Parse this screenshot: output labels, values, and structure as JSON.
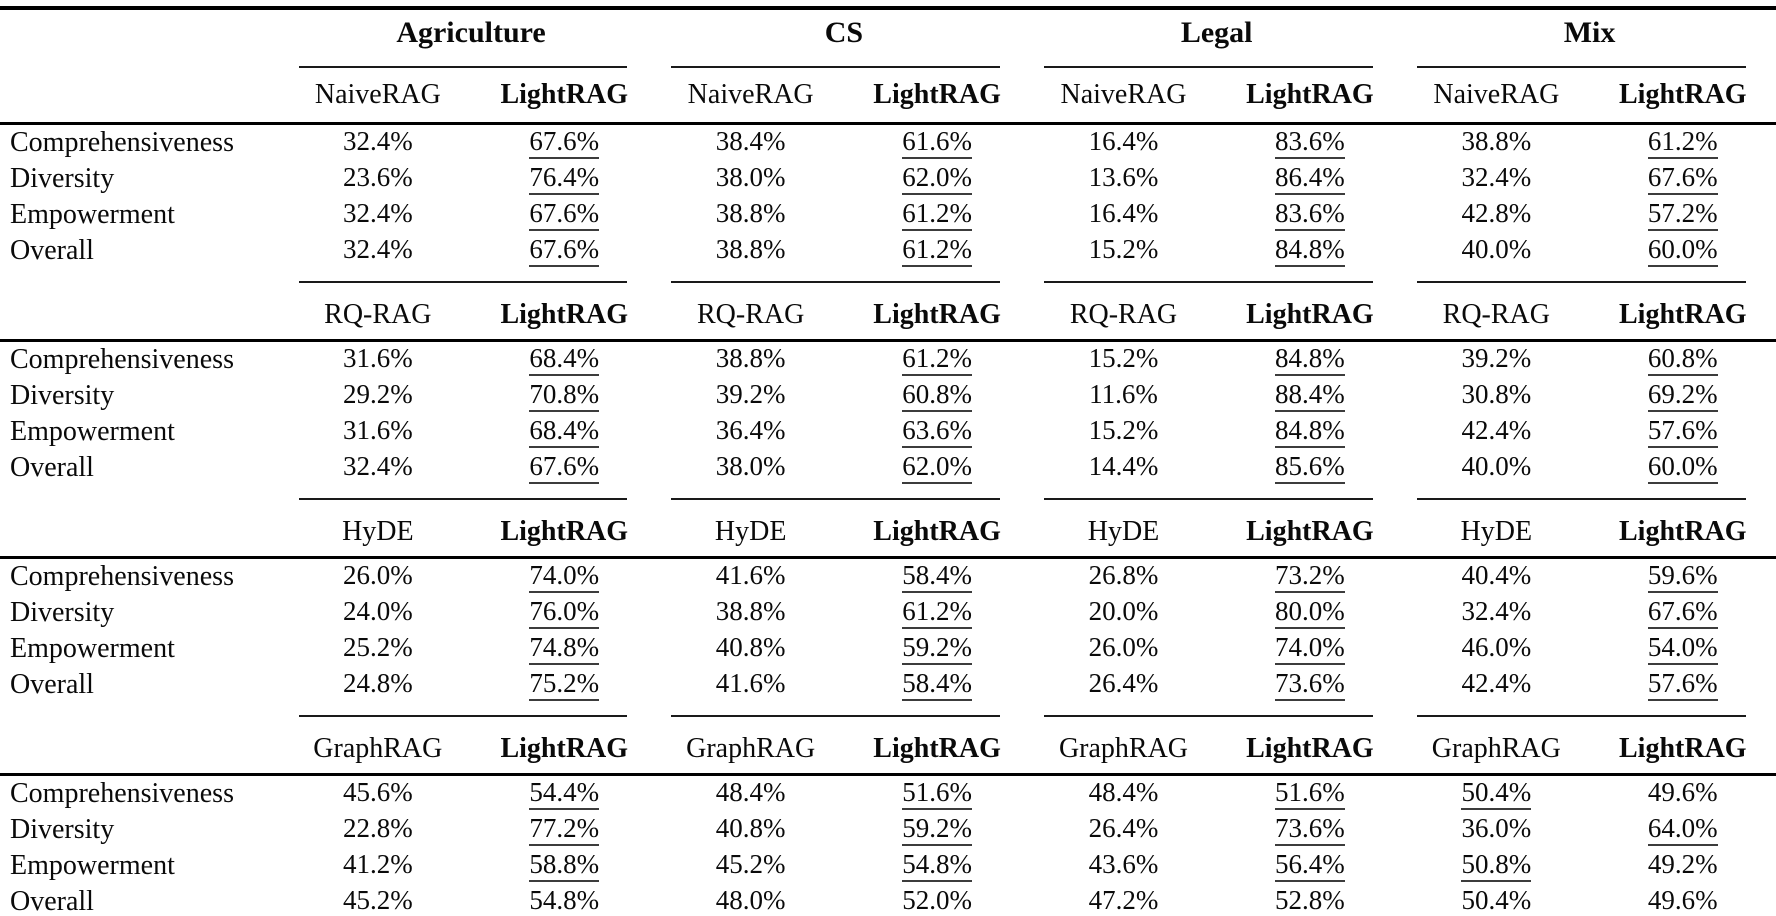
{
  "table": {
    "domains": [
      "Agriculture",
      "CS",
      "Legal",
      "Mix"
    ],
    "metrics": [
      "Comprehensiveness",
      "Diversity",
      "Empowerment",
      "Overall"
    ],
    "sections": [
      {
        "baseline_label": "NaiveRAG",
        "lightrag_label": "LightRAG",
        "rows": [
          {
            "metric": "Comprehensiveness",
            "cells": [
              {
                "baseline": "32.4%",
                "lightrag": "67.6%",
                "winner": "lightrag"
              },
              {
                "baseline": "38.4%",
                "lightrag": "61.6%",
                "winner": "lightrag"
              },
              {
                "baseline": "16.4%",
                "lightrag": "83.6%",
                "winner": "lightrag"
              },
              {
                "baseline": "38.8%",
                "lightrag": "61.2%",
                "winner": "lightrag"
              }
            ]
          },
          {
            "metric": "Diversity",
            "cells": [
              {
                "baseline": "23.6%",
                "lightrag": "76.4%",
                "winner": "lightrag"
              },
              {
                "baseline": "38.0%",
                "lightrag": "62.0%",
                "winner": "lightrag"
              },
              {
                "baseline": "13.6%",
                "lightrag": "86.4%",
                "winner": "lightrag"
              },
              {
                "baseline": "32.4%",
                "lightrag": "67.6%",
                "winner": "lightrag"
              }
            ]
          },
          {
            "metric": "Empowerment",
            "cells": [
              {
                "baseline": "32.4%",
                "lightrag": "67.6%",
                "winner": "lightrag"
              },
              {
                "baseline": "38.8%",
                "lightrag": "61.2%",
                "winner": "lightrag"
              },
              {
                "baseline": "16.4%",
                "lightrag": "83.6%",
                "winner": "lightrag"
              },
              {
                "baseline": "42.8%",
                "lightrag": "57.2%",
                "winner": "lightrag"
              }
            ]
          },
          {
            "metric": "Overall",
            "cells": [
              {
                "baseline": "32.4%",
                "lightrag": "67.6%",
                "winner": "lightrag"
              },
              {
                "baseline": "38.8%",
                "lightrag": "61.2%",
                "winner": "lightrag"
              },
              {
                "baseline": "15.2%",
                "lightrag": "84.8%",
                "winner": "lightrag"
              },
              {
                "baseline": "40.0%",
                "lightrag": "60.0%",
                "winner": "lightrag"
              }
            ]
          }
        ]
      },
      {
        "baseline_label": "RQ-RAG",
        "lightrag_label": "LightRAG",
        "rows": [
          {
            "metric": "Comprehensiveness",
            "cells": [
              {
                "baseline": "31.6%",
                "lightrag": "68.4%",
                "winner": "lightrag"
              },
              {
                "baseline": "38.8%",
                "lightrag": "61.2%",
                "winner": "lightrag"
              },
              {
                "baseline": "15.2%",
                "lightrag": "84.8%",
                "winner": "lightrag"
              },
              {
                "baseline": "39.2%",
                "lightrag": "60.8%",
                "winner": "lightrag"
              }
            ]
          },
          {
            "metric": "Diversity",
            "cells": [
              {
                "baseline": "29.2%",
                "lightrag": "70.8%",
                "winner": "lightrag"
              },
              {
                "baseline": "39.2%",
                "lightrag": "60.8%",
                "winner": "lightrag"
              },
              {
                "baseline": "11.6%",
                "lightrag": "88.4%",
                "winner": "lightrag"
              },
              {
                "baseline": "30.8%",
                "lightrag": "69.2%",
                "winner": "lightrag"
              }
            ]
          },
          {
            "metric": "Empowerment",
            "cells": [
              {
                "baseline": "31.6%",
                "lightrag": "68.4%",
                "winner": "lightrag"
              },
              {
                "baseline": "36.4%",
                "lightrag": "63.6%",
                "winner": "lightrag"
              },
              {
                "baseline": "15.2%",
                "lightrag": "84.8%",
                "winner": "lightrag"
              },
              {
                "baseline": "42.4%",
                "lightrag": "57.6%",
                "winner": "lightrag"
              }
            ]
          },
          {
            "metric": "Overall",
            "cells": [
              {
                "baseline": "32.4%",
                "lightrag": "67.6%",
                "winner": "lightrag"
              },
              {
                "baseline": "38.0%",
                "lightrag": "62.0%",
                "winner": "lightrag"
              },
              {
                "baseline": "14.4%",
                "lightrag": "85.6%",
                "winner": "lightrag"
              },
              {
                "baseline": "40.0%",
                "lightrag": "60.0%",
                "winner": "lightrag"
              }
            ]
          }
        ]
      },
      {
        "baseline_label": "HyDE",
        "lightrag_label": "LightRAG",
        "rows": [
          {
            "metric": "Comprehensiveness",
            "cells": [
              {
                "baseline": "26.0%",
                "lightrag": "74.0%",
                "winner": "lightrag"
              },
              {
                "baseline": "41.6%",
                "lightrag": "58.4%",
                "winner": "lightrag"
              },
              {
                "baseline": "26.8%",
                "lightrag": "73.2%",
                "winner": "lightrag"
              },
              {
                "baseline": "40.4%",
                "lightrag": "59.6%",
                "winner": "lightrag"
              }
            ]
          },
          {
            "metric": "Diversity",
            "cells": [
              {
                "baseline": "24.0%",
                "lightrag": "76.0%",
                "winner": "lightrag"
              },
              {
                "baseline": "38.8%",
                "lightrag": "61.2%",
                "winner": "lightrag"
              },
              {
                "baseline": "20.0%",
                "lightrag": "80.0%",
                "winner": "lightrag"
              },
              {
                "baseline": "32.4%",
                "lightrag": "67.6%",
                "winner": "lightrag"
              }
            ]
          },
          {
            "metric": "Empowerment",
            "cells": [
              {
                "baseline": "25.2%",
                "lightrag": "74.8%",
                "winner": "lightrag"
              },
              {
                "baseline": "40.8%",
                "lightrag": "59.2%",
                "winner": "lightrag"
              },
              {
                "baseline": "26.0%",
                "lightrag": "74.0%",
                "winner": "lightrag"
              },
              {
                "baseline": "46.0%",
                "lightrag": "54.0%",
                "winner": "lightrag"
              }
            ]
          },
          {
            "metric": "Overall",
            "cells": [
              {
                "baseline": "24.8%",
                "lightrag": "75.2%",
                "winner": "lightrag"
              },
              {
                "baseline": "41.6%",
                "lightrag": "58.4%",
                "winner": "lightrag"
              },
              {
                "baseline": "26.4%",
                "lightrag": "73.6%",
                "winner": "lightrag"
              },
              {
                "baseline": "42.4%",
                "lightrag": "57.6%",
                "winner": "lightrag"
              }
            ]
          }
        ]
      },
      {
        "baseline_label": "GraphRAG",
        "lightrag_label": "LightRAG",
        "rows": [
          {
            "metric": "Comprehensiveness",
            "cells": [
              {
                "baseline": "45.6%",
                "lightrag": "54.4%",
                "winner": "lightrag"
              },
              {
                "baseline": "48.4%",
                "lightrag": "51.6%",
                "winner": "lightrag"
              },
              {
                "baseline": "48.4%",
                "lightrag": "51.6%",
                "winner": "lightrag"
              },
              {
                "baseline": "50.4%",
                "lightrag": "49.6%",
                "winner": "baseline"
              }
            ]
          },
          {
            "metric": "Diversity",
            "cells": [
              {
                "baseline": "22.8%",
                "lightrag": "77.2%",
                "winner": "lightrag"
              },
              {
                "baseline": "40.8%",
                "lightrag": "59.2%",
                "winner": "lightrag"
              },
              {
                "baseline": "26.4%",
                "lightrag": "73.6%",
                "winner": "lightrag"
              },
              {
                "baseline": "36.0%",
                "lightrag": "64.0%",
                "winner": "lightrag"
              }
            ]
          },
          {
            "metric": "Empowerment",
            "cells": [
              {
                "baseline": "41.2%",
                "lightrag": "58.8%",
                "winner": "lightrag"
              },
              {
                "baseline": "45.2%",
                "lightrag": "54.8%",
                "winner": "lightrag"
              },
              {
                "baseline": "43.6%",
                "lightrag": "56.4%",
                "winner": "lightrag"
              },
              {
                "baseline": "50.8%",
                "lightrag": "49.2%",
                "winner": "baseline"
              }
            ]
          },
          {
            "metric": "Overall",
            "cells": [
              {
                "baseline": "45.2%",
                "lightrag": "54.8%",
                "winner": "lightrag"
              },
              {
                "baseline": "48.0%",
                "lightrag": "52.0%",
                "winner": "lightrag"
              },
              {
                "baseline": "47.2%",
                "lightrag": "52.8%",
                "winner": "lightrag"
              },
              {
                "baseline": "50.4%",
                "lightrag": "49.6%",
                "winner": "baseline"
              }
            ]
          }
        ]
      }
    ]
  }
}
